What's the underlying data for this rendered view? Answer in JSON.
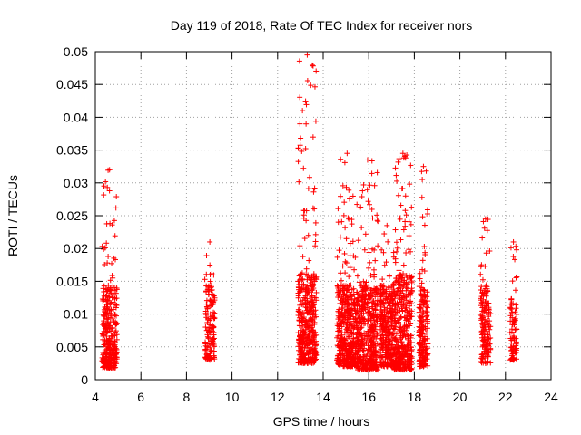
{
  "chart_data": {
    "type": "scatter",
    "title": "Day 119 of 2018, Rate Of TEC Index for receiver nors",
    "xlabel": "GPS time / hours",
    "ylabel": "ROTI / TECUs",
    "xlim": [
      4,
      24
    ],
    "ylim": [
      0,
      0.05
    ],
    "grid": true,
    "marker": "+",
    "color": "#ff0000",
    "x_ticks": [
      {
        "value": 4,
        "label": "4"
      },
      {
        "value": 6,
        "label": "6"
      },
      {
        "value": 8,
        "label": "8"
      },
      {
        "value": 10,
        "label": "10"
      },
      {
        "value": 12,
        "label": "12"
      },
      {
        "value": 14,
        "label": "14"
      },
      {
        "value": 16,
        "label": "16"
      },
      {
        "value": 18,
        "label": "18"
      },
      {
        "value": 20,
        "label": "20"
      },
      {
        "value": 22,
        "label": "22"
      },
      {
        "value": 24,
        "label": "24"
      }
    ],
    "y_ticks": [
      {
        "value": 0,
        "label": "0"
      },
      {
        "value": 0.005,
        "label": "0.005"
      },
      {
        "value": 0.01,
        "label": "0.01"
      },
      {
        "value": 0.015,
        "label": "0.015"
      },
      {
        "value": 0.02,
        "label": "0.02"
      },
      {
        "value": 0.025,
        "label": "0.025"
      },
      {
        "value": 0.03,
        "label": "0.03"
      },
      {
        "value": 0.035,
        "label": "0.035"
      },
      {
        "value": 0.04,
        "label": "0.04"
      },
      {
        "value": 0.045,
        "label": "0.045"
      },
      {
        "value": 0.05,
        "label": "0.05"
      }
    ],
    "clusters": [
      {
        "x_start": 4.3,
        "x_end": 4.95,
        "y_min": 0.0018,
        "y_max": 0.032,
        "y_typical": 0.008,
        "count": 330
      },
      {
        "x_start": 8.8,
        "x_end": 9.25,
        "y_min": 0.003,
        "y_max": 0.021,
        "y_typical": 0.008,
        "count": 140
      },
      {
        "x_start": 12.9,
        "x_end": 13.7,
        "y_min": 0.0025,
        "y_max": 0.0495,
        "y_typical": 0.009,
        "count": 420
      },
      {
        "x_start": 14.6,
        "x_end": 15.5,
        "y_min": 0.002,
        "y_max": 0.0345,
        "y_typical": 0.008,
        "count": 480
      },
      {
        "x_start": 15.5,
        "x_end": 16.4,
        "y_min": 0.0015,
        "y_max": 0.0335,
        "y_typical": 0.008,
        "count": 450
      },
      {
        "x_start": 16.5,
        "x_end": 17.1,
        "y_min": 0.002,
        "y_max": 0.0235,
        "y_typical": 0.008,
        "count": 300
      },
      {
        "x_start": 17.1,
        "x_end": 17.9,
        "y_min": 0.0015,
        "y_max": 0.0345,
        "y_typical": 0.009,
        "count": 420
      },
      {
        "x_start": 18.2,
        "x_end": 18.6,
        "y_min": 0.002,
        "y_max": 0.0325,
        "y_typical": 0.008,
        "count": 200
      },
      {
        "x_start": 20.9,
        "x_end": 21.35,
        "y_min": 0.0025,
        "y_max": 0.0245,
        "y_typical": 0.008,
        "count": 170
      },
      {
        "x_start": 22.2,
        "x_end": 22.5,
        "y_min": 0.003,
        "y_max": 0.021,
        "y_typical": 0.007,
        "count": 90
      }
    ]
  }
}
